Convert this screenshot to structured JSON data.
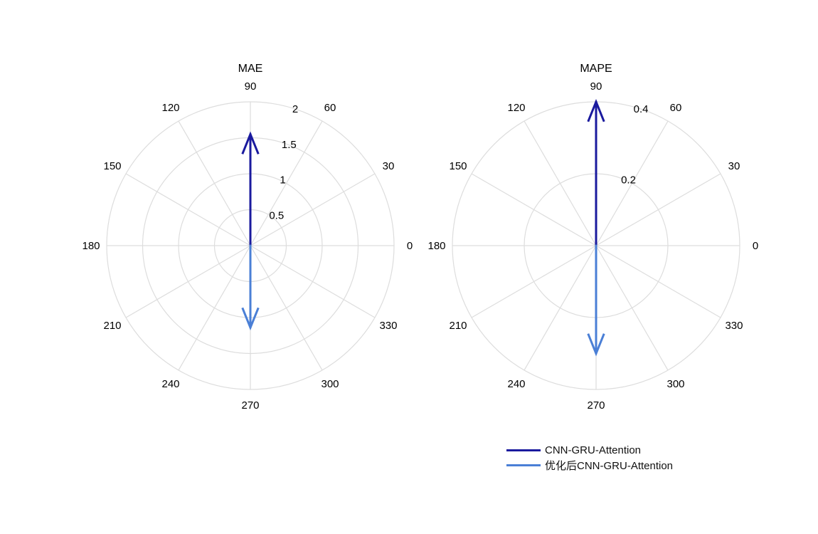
{
  "chart_data": [
    {
      "type": "compass",
      "title": "MAE",
      "theta_ticks": [
        "0",
        "30",
        "60",
        "90",
        "120",
        "150",
        "180",
        "210",
        "240",
        "270",
        "300",
        "330"
      ],
      "r_ticks": [
        0.5,
        1,
        1.5,
        2
      ],
      "r_tick_labels": [
        "0.5",
        "1",
        "1.5",
        "2"
      ],
      "rlim": [
        0,
        2
      ],
      "series": [
        {
          "name": "CNN-GRU-Attention",
          "angle_deg": 90,
          "value": 1.55
        },
        {
          "name": "优化后CNN-GRU-Attention",
          "angle_deg": 270,
          "value": 1.14
        }
      ]
    },
    {
      "type": "compass",
      "title": "MAPE",
      "theta_ticks": [
        "0",
        "30",
        "60",
        "90",
        "120",
        "150",
        "180",
        "210",
        "240",
        "270",
        "300",
        "330"
      ],
      "r_ticks": [
        0.2,
        0.4
      ],
      "r_tick_labels": [
        "0.2",
        "0.4"
      ],
      "rlim": [
        0,
        0.4
      ],
      "series": [
        {
          "name": "CNN-GRU-Attention",
          "angle_deg": 90,
          "value": 0.4
        },
        {
          "name": "优化后CNN-GRU-Attention",
          "angle_deg": 270,
          "value": 0.3
        }
      ]
    }
  ],
  "colors": {
    "series1": "#1a1a9e",
    "series2": "#4a7fd6",
    "grid": "#dddddd"
  },
  "legend": {
    "items": [
      {
        "label": "CNN-GRU-Attention",
        "color": "#1a1a9e"
      },
      {
        "label": "优化后CNN-GRU-Attention",
        "color": "#4a7fd6"
      }
    ]
  }
}
